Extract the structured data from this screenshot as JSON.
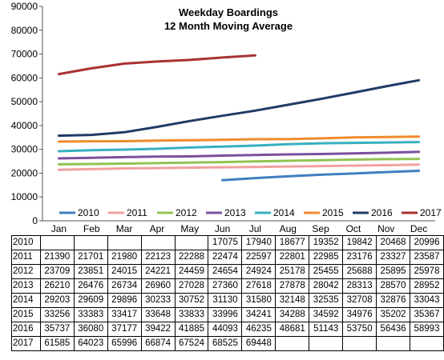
{
  "chart_data": {
    "type": "line",
    "title": "Weekday Boardings",
    "subtitle": "12 Month Moving Average",
    "categories": [
      "Jan",
      "Feb",
      "Mar",
      "Apr",
      "May",
      "Jun",
      "Jul",
      "Aug",
      "Sep",
      "Oct",
      "Nov",
      "Dec"
    ],
    "ylim": [
      0,
      90000
    ],
    "yticks": [
      "0",
      "10000",
      "20000",
      "30000",
      "40000",
      "50000",
      "60000",
      "70000",
      "80000",
      "90000"
    ],
    "grid": false,
    "legend_position": "bottom",
    "series": [
      {
        "name": "2010",
        "color": "#3f7fbf",
        "values": [
          null,
          null,
          null,
          null,
          null,
          17075,
          17940,
          18677,
          19352,
          19842,
          20468,
          20996
        ]
      },
      {
        "name": "2011",
        "color": "#f2a0a0",
        "values": [
          21390,
          21701,
          21980,
          22123,
          22288,
          22474,
          22597,
          22801,
          22985,
          23176,
          23327,
          23587
        ]
      },
      {
        "name": "2012",
        "color": "#92c353",
        "values": [
          23709,
          23851,
          24015,
          24221,
          24459,
          24654,
          24924,
          25178,
          25455,
          25688,
          25895,
          25978
        ]
      },
      {
        "name": "2013",
        "color": "#7b4fa0",
        "values": [
          26210,
          26476,
          26734,
          26960,
          27028,
          27360,
          27618,
          27878,
          28042,
          28313,
          28570,
          28952
        ]
      },
      {
        "name": "2014",
        "color": "#37b0c0",
        "values": [
          29203,
          29609,
          29896,
          30233,
          30752,
          31130,
          31580,
          32148,
          32535,
          32708,
          32876,
          33043
        ]
      },
      {
        "name": "2015",
        "color": "#f08c2c",
        "values": [
          33256,
          33383,
          33417,
          33648,
          33833,
          33996,
          34241,
          34288,
          34592,
          34976,
          35202,
          35367
        ]
      },
      {
        "name": "2016",
        "color": "#1f3b66",
        "values": [
          35737,
          36080,
          37177,
          39422,
          41885,
          44093,
          46235,
          48681,
          51143,
          53750,
          56436,
          58993
        ]
      },
      {
        "name": "2017",
        "color": "#a83232",
        "values": [
          61585,
          64023,
          65996,
          66874,
          67524,
          68525,
          69448,
          null,
          null,
          null,
          null,
          null
        ]
      }
    ]
  },
  "table": {
    "rows": [
      {
        "year": "2010",
        "cells": [
          "",
          "",
          "",
          "",
          "",
          "17075",
          "17940",
          "18677",
          "19352",
          "19842",
          "20468",
          "20996"
        ]
      },
      {
        "year": "2011",
        "cells": [
          "21390",
          "21701",
          "21980",
          "22123",
          "22288",
          "22474",
          "22597",
          "22801",
          "22985",
          "23176",
          "23327",
          "23587"
        ]
      },
      {
        "year": "2012",
        "cells": [
          "23709",
          "23851",
          "24015",
          "24221",
          "24459",
          "24654",
          "24924",
          "25178",
          "25455",
          "25688",
          "25895",
          "25978"
        ]
      },
      {
        "year": "2013",
        "cells": [
          "26210",
          "26476",
          "26734",
          "26960",
          "27028",
          "27360",
          "27618",
          "27878",
          "28042",
          "28313",
          "28570",
          "28952"
        ]
      },
      {
        "year": "2014",
        "cells": [
          "29203",
          "29609",
          "29896",
          "30233",
          "30752",
          "31130",
          "31580",
          "32148",
          "32535",
          "32708",
          "32876",
          "33043"
        ]
      },
      {
        "year": "2015",
        "cells": [
          "33256",
          "33383",
          "33417",
          "33648",
          "33833",
          "33996",
          "34241",
          "34288",
          "34592",
          "34976",
          "35202",
          "35367"
        ]
      },
      {
        "year": "2016",
        "cells": [
          "35737",
          "36080",
          "37177",
          "39422",
          "41885",
          "44093",
          "46235",
          "48681",
          "51143",
          "53750",
          "56436",
          "58993"
        ]
      },
      {
        "year": "2017",
        "cells": [
          "61585",
          "64023",
          "65996",
          "66874",
          "67524",
          "68525",
          "69448",
          "",
          "",
          "",
          "",
          ""
        ]
      }
    ]
  }
}
